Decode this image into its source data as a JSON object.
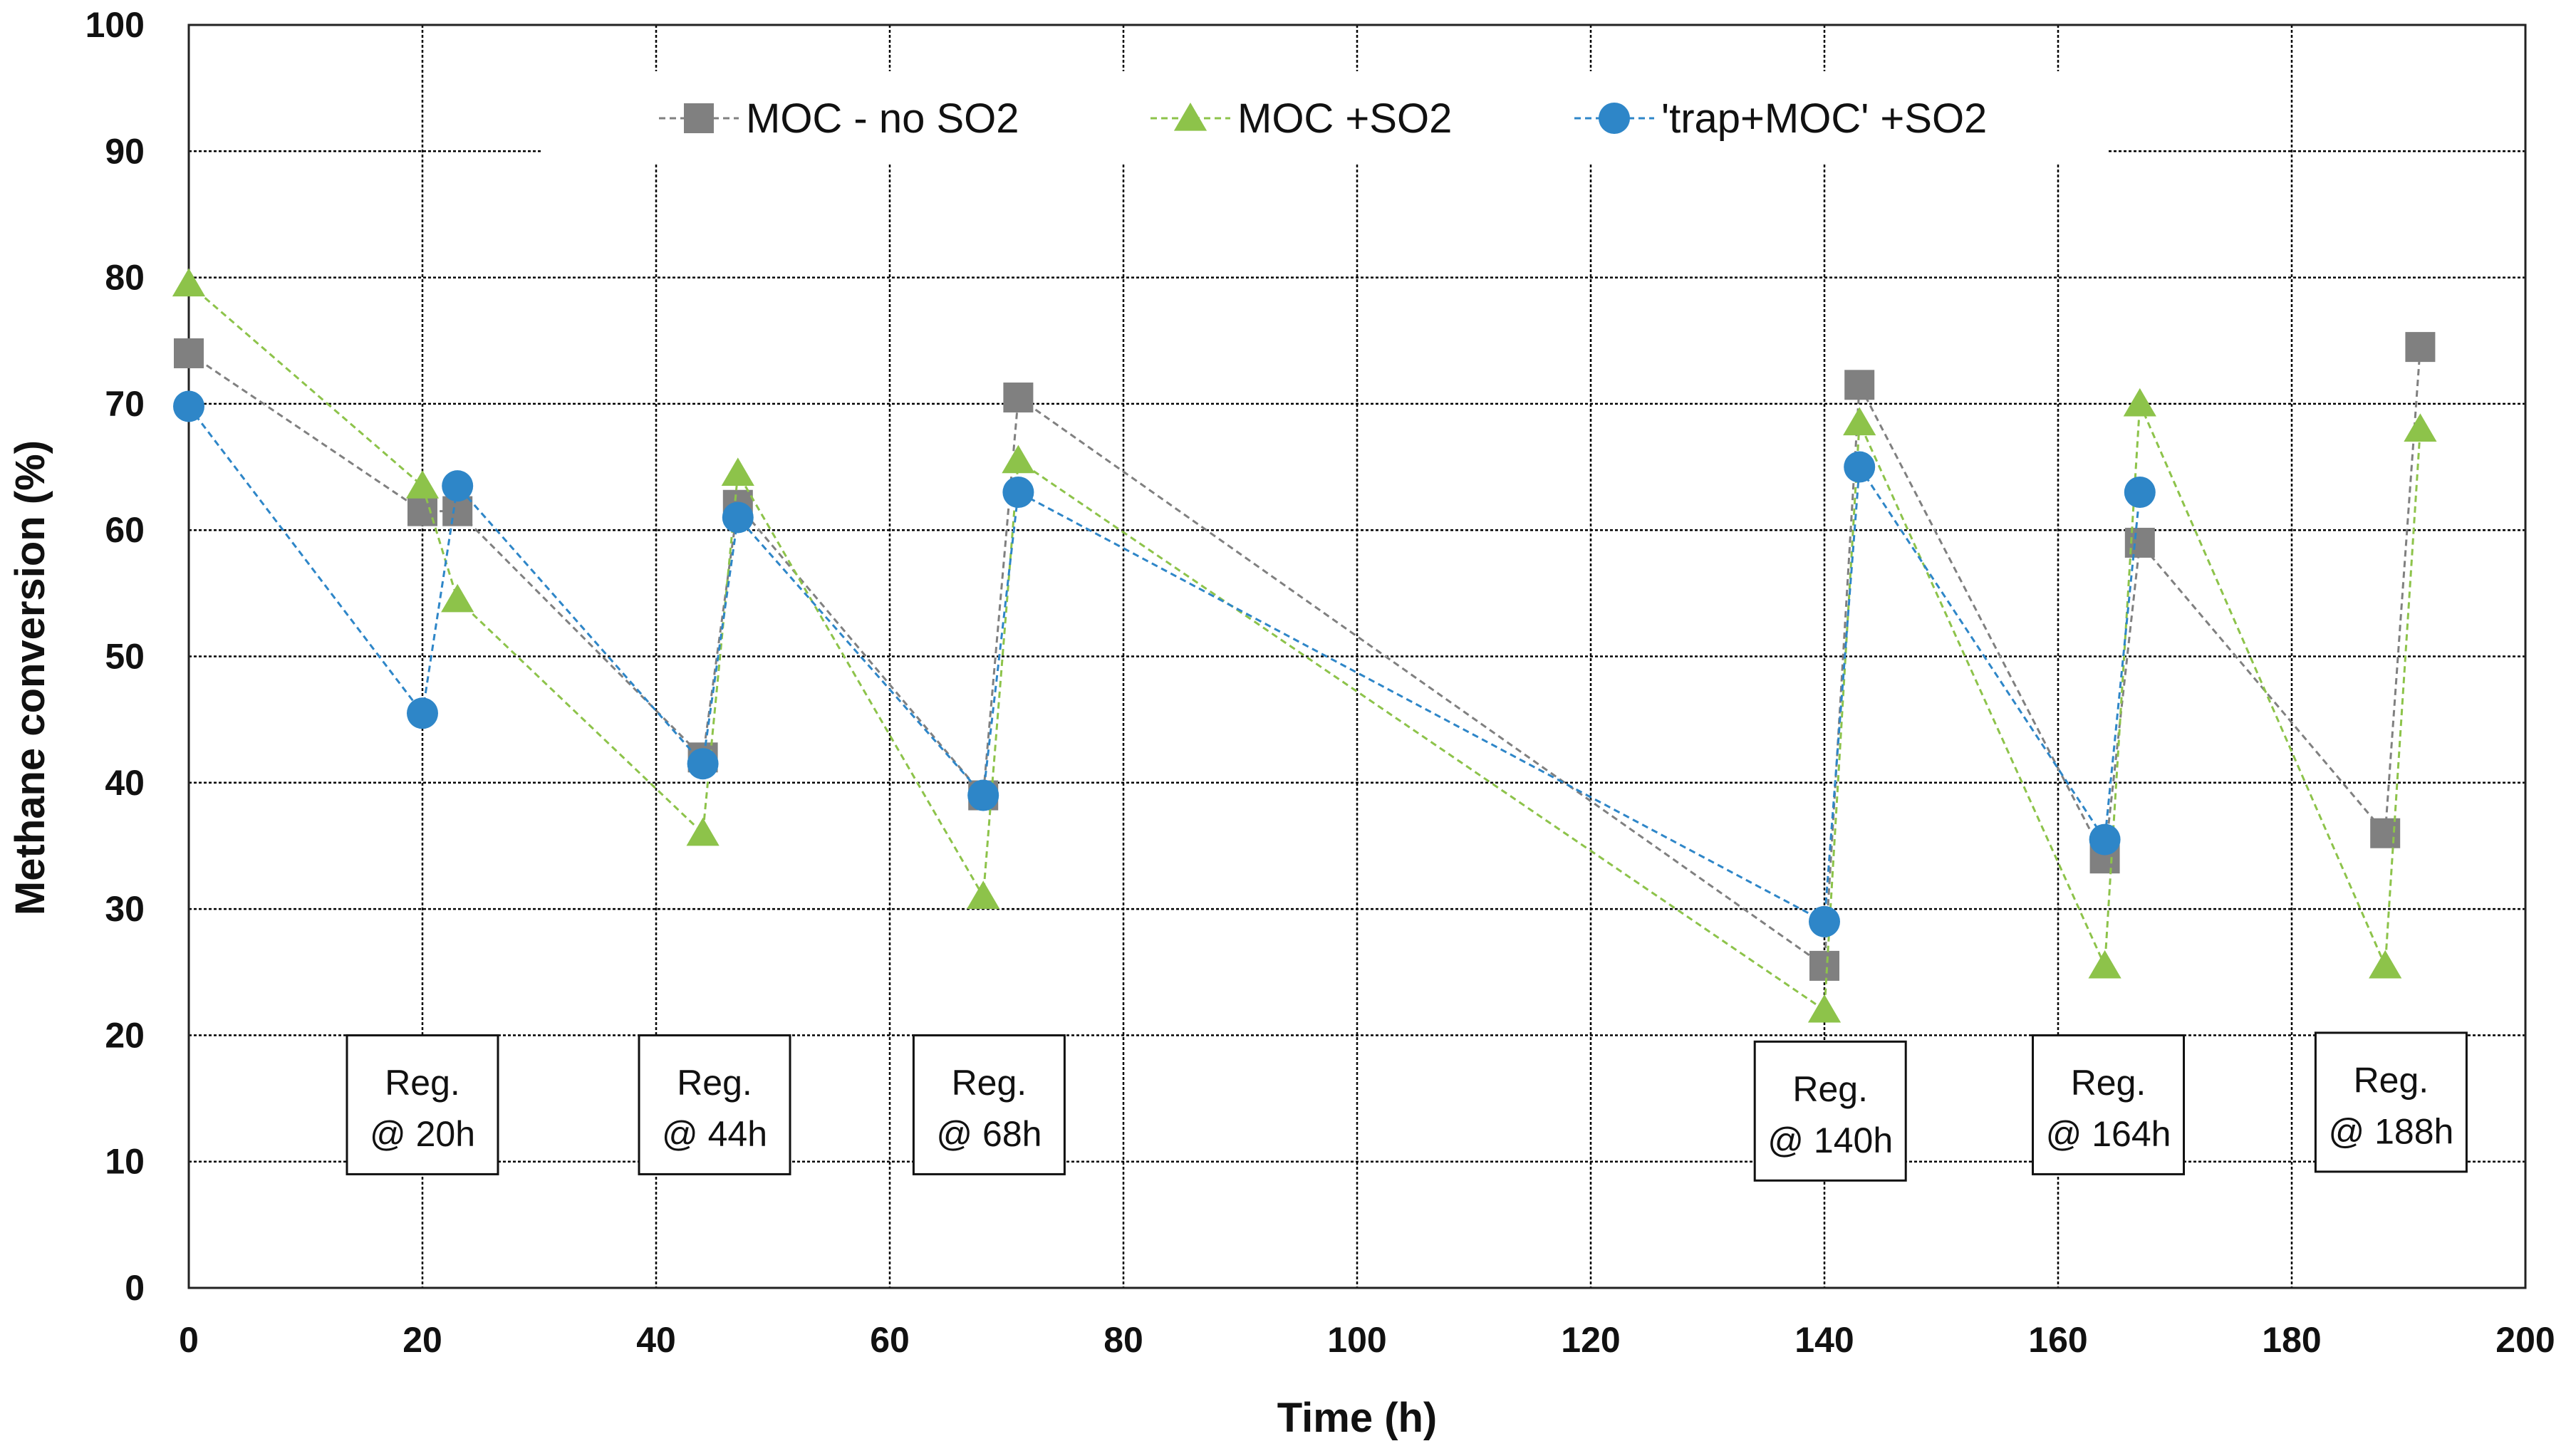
{
  "chart_data": {
    "type": "line",
    "title": "",
    "xlabel": "Time (h)",
    "ylabel": "Methane conversion (%)",
    "xlim": [
      0,
      200
    ],
    "ylim": [
      0,
      100
    ],
    "x_ticks": [
      0,
      20,
      40,
      60,
      80,
      100,
      120,
      140,
      160,
      180,
      200
    ],
    "y_ticks": [
      0,
      10,
      20,
      30,
      40,
      50,
      60,
      70,
      80,
      90,
      100
    ],
    "grid": true,
    "legend_position": "top-center",
    "series": [
      {
        "name": "MOC - no SO2",
        "marker": "square",
        "color": "#808080",
        "line_style": "dashed",
        "points": [
          {
            "x": 0,
            "y": 74
          },
          {
            "x": 20,
            "y": 61.5
          },
          {
            "x": 23,
            "y": 61.5
          },
          {
            "x": 44,
            "y": 42
          },
          {
            "x": 47,
            "y": 62
          },
          {
            "x": 68,
            "y": 39
          },
          {
            "x": 71,
            "y": 70.5
          },
          {
            "x": 140,
            "y": 25.5
          },
          {
            "x": 143,
            "y": 71.5
          },
          {
            "x": 164,
            "y": 34
          },
          {
            "x": 167,
            "y": 59
          },
          {
            "x": 188,
            "y": 36
          },
          {
            "x": 191,
            "y": 74.5
          }
        ]
      },
      {
        "name": "MOC +SO2",
        "marker": "triangle",
        "color": "#8DC34A",
        "line_style": "dashed",
        "points": [
          {
            "x": 0,
            "y": 79.5
          },
          {
            "x": 20,
            "y": 63.5
          },
          {
            "x": 23,
            "y": 54.5
          },
          {
            "x": 44,
            "y": 36
          },
          {
            "x": 47,
            "y": 64.5
          },
          {
            "x": 68,
            "y": 31
          },
          {
            "x": 71,
            "y": 65.5
          },
          {
            "x": 140,
            "y": 22
          },
          {
            "x": 143,
            "y": 68.5
          },
          {
            "x": 164,
            "y": 25.5
          },
          {
            "x": 167,
            "y": 70
          },
          {
            "x": 188,
            "y": 25.5
          },
          {
            "x": 191,
            "y": 68
          }
        ]
      },
      {
        "name": "'trap+MOC' +SO2",
        "marker": "circle",
        "color": "#2E86C8",
        "line_style": "dashed",
        "points": [
          {
            "x": 0,
            "y": 69.8
          },
          {
            "x": 20,
            "y": 45.5
          },
          {
            "x": 23,
            "y": 63.5
          },
          {
            "x": 44,
            "y": 41.5
          },
          {
            "x": 47,
            "y": 61
          },
          {
            "x": 68,
            "y": 39
          },
          {
            "x": 71,
            "y": 63
          },
          {
            "x": 140,
            "y": 29
          },
          {
            "x": 143,
            "y": 65
          },
          {
            "x": 164,
            "y": 35.5
          },
          {
            "x": 167,
            "y": 63
          }
        ]
      }
    ],
    "annotations": [
      {
        "line1": "Reg.",
        "line2": "@ 20h",
        "x": 20,
        "y": 14.5
      },
      {
        "line1": "Reg.",
        "line2": "@ 44h",
        "x": 45,
        "y": 14.5
      },
      {
        "line1": "Reg.",
        "line2": "@ 68h",
        "x": 68.5,
        "y": 14.5
      },
      {
        "line1": "Reg.",
        "line2": "@ 140h",
        "x": 140.5,
        "y": 14
      },
      {
        "line1": "Reg.",
        "line2": "@ 164h",
        "x": 164.3,
        "y": 14.5
      },
      {
        "line1": "Reg.",
        "line2": "@ 188h",
        "x": 188.5,
        "y": 14.7
      }
    ]
  }
}
